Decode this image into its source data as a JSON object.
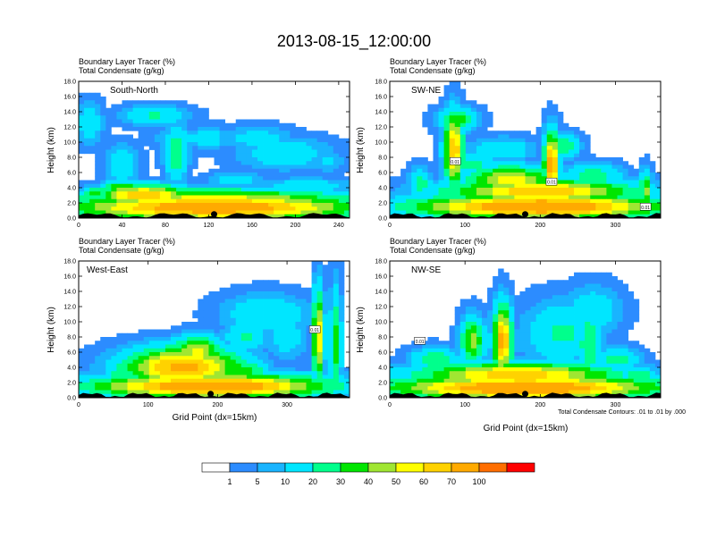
{
  "figure_title": "2013-08-15_12:00:00",
  "chart_data": [
    {
      "type": "heatmap",
      "panel": "South-North",
      "title_line1": "Boundary Layer Tracer   (%)",
      "title_line2": "Total Condensate   (g/kg)",
      "ylabel": "Height (km)",
      "xlabel": "",
      "xlim": [
        0,
        250
      ],
      "ylim": [
        0,
        18
      ],
      "x_ticks": [
        "0",
        "40",
        "80",
        "120",
        "160",
        "200",
        "240"
      ],
      "y_ticks": [
        "0.0",
        "2.0",
        "4.0",
        "6.0",
        "8.0",
        "10.0",
        "12.0",
        "14.0",
        "16.0",
        "18.0"
      ],
      "marker_x": 125,
      "blobs": [
        {
          "x": 125,
          "y": 1.4,
          "rx": 130,
          "ry": 1.6,
          "v": 85
        },
        {
          "x": 125,
          "y": 2.2,
          "rx": 130,
          "ry": 1.5,
          "v": 60
        },
        {
          "x": 60,
          "y": 3.0,
          "rx": 40,
          "ry": 1.3,
          "v": 72
        },
        {
          "x": 40,
          "y": 3.8,
          "rx": 18,
          "ry": 1.0,
          "v": 45
        },
        {
          "x": 15,
          "y": 3.2,
          "rx": 10,
          "ry": 0.8,
          "v": 40
        },
        {
          "x": 10,
          "y": 12.5,
          "rx": 12,
          "ry": 2.5,
          "v": 18
        },
        {
          "x": 70,
          "y": 13.5,
          "rx": 30,
          "ry": 1.2,
          "v": 22
        },
        {
          "x": 90,
          "y": 8.5,
          "rx": 10,
          "ry": 3.5,
          "v": 30
        },
        {
          "x": 95,
          "y": 10.5,
          "rx": 25,
          "ry": 1.2,
          "v": 15
        },
        {
          "x": 120,
          "y": 10.5,
          "rx": 15,
          "ry": 1.5,
          "v": 20
        },
        {
          "x": 190,
          "y": 8.5,
          "rx": 40,
          "ry": 2.0,
          "v": 18
        },
        {
          "x": 165,
          "y": 10.5,
          "rx": 30,
          "ry": 1.5,
          "v": 15
        },
        {
          "x": 40,
          "y": 7.0,
          "rx": 15,
          "ry": 2.5,
          "v": 18
        },
        {
          "x": 230,
          "y": 7.5,
          "rx": 15,
          "ry": 1.5,
          "v": 12
        },
        {
          "x": 145,
          "y": 5.0,
          "rx": 25,
          "ry": 1.0,
          "v": 15
        },
        {
          "x": 210,
          "y": 4.2,
          "rx": 40,
          "ry": 1.0,
          "v": 18
        }
      ]
    },
    {
      "type": "heatmap",
      "panel": "SW-NE",
      "title_line1": "Boundary Layer Tracer   (%)",
      "title_line2": "Total Condensate   (g/kg)",
      "ylabel": "Height (km)",
      "xlabel": "",
      "xlim": [
        0,
        360
      ],
      "ylim": [
        0,
        18
      ],
      "x_ticks": [
        "0",
        "100",
        "200",
        "300"
      ],
      "y_ticks": [
        "0.0",
        "2.0",
        "4.0",
        "6.0",
        "8.0",
        "10.0",
        "12.0",
        "14.0",
        "16.0",
        "18.0"
      ],
      "marker_x": 180,
      "contour_labels": [
        {
          "x": 87,
          "y": 7.5,
          "text": "0.01"
        },
        {
          "x": 215,
          "y": 4.8,
          "text": "0.01"
        },
        {
          "x": 340,
          "y": 1.5,
          "text": "0.01"
        }
      ],
      "blobs": [
        {
          "x": 200,
          "y": 1.5,
          "rx": 160,
          "ry": 1.5,
          "v": 90
        },
        {
          "x": 200,
          "y": 3.5,
          "rx": 120,
          "ry": 1.5,
          "v": 70
        },
        {
          "x": 160,
          "y": 5.0,
          "rx": 60,
          "ry": 1.8,
          "v": 55
        },
        {
          "x": 85,
          "y": 9.0,
          "rx": 12,
          "ry": 4.5,
          "v": 72
        },
        {
          "x": 90,
          "y": 13.0,
          "rx": 25,
          "ry": 1.5,
          "v": 35
        },
        {
          "x": 215,
          "y": 7.0,
          "rx": 10,
          "ry": 4.0,
          "v": 80
        },
        {
          "x": 230,
          "y": 9.5,
          "rx": 20,
          "ry": 1.5,
          "v": 30
        },
        {
          "x": 150,
          "y": 9.0,
          "rx": 40,
          "ry": 1.5,
          "v": 20
        },
        {
          "x": 110,
          "y": 7.0,
          "rx": 30,
          "ry": 1.5,
          "v": 25
        },
        {
          "x": 270,
          "y": 5.5,
          "rx": 35,
          "ry": 1.5,
          "v": 30
        },
        {
          "x": 340,
          "y": 3.5,
          "rx": 8,
          "ry": 2.5,
          "v": 45
        },
        {
          "x": 40,
          "y": 4.5,
          "rx": 15,
          "ry": 2.0,
          "v": 25
        }
      ]
    },
    {
      "type": "heatmap",
      "panel": "West-East",
      "title_line1": "Boundary Layer Tracer   (%)",
      "title_line2": "Total Condensate   (g/kg)",
      "ylabel": "Height (km)",
      "xlabel": "Grid Point (dx=15km)",
      "xlim": [
        0,
        390
      ],
      "ylim": [
        0,
        18
      ],
      "x_ticks": [
        "0",
        "100",
        "200",
        "300"
      ],
      "y_ticks": [
        "0.0",
        "2.0",
        "4.0",
        "6.0",
        "8.0",
        "10.0",
        "12.0",
        "14.0",
        "16.0",
        "18.0"
      ],
      "marker_x": 190,
      "contour_labels": [
        {
          "x": 340,
          "y": 9.0,
          "text": "0.01"
        }
      ],
      "blobs": [
        {
          "x": 190,
          "y": 1.5,
          "rx": 160,
          "ry": 1.5,
          "v": 88
        },
        {
          "x": 150,
          "y": 4.0,
          "rx": 80,
          "ry": 2.5,
          "v": 75
        },
        {
          "x": 170,
          "y": 6.0,
          "rx": 35,
          "ry": 2.0,
          "v": 55
        },
        {
          "x": 230,
          "y": 3.5,
          "rx": 40,
          "ry": 1.5,
          "v": 40
        },
        {
          "x": 270,
          "y": 11.0,
          "rx": 60,
          "ry": 2.5,
          "v": 20
        },
        {
          "x": 240,
          "y": 8.0,
          "rx": 30,
          "ry": 2.0,
          "v": 22
        },
        {
          "x": 300,
          "y": 8.0,
          "rx": 30,
          "ry": 3.0,
          "v": 15
        },
        {
          "x": 345,
          "y": 8.0,
          "rx": 8,
          "ry": 6.0,
          "v": 60
        },
        {
          "x": 370,
          "y": 7.0,
          "rx": 8,
          "ry": 7.0,
          "v": 35
        },
        {
          "x": 60,
          "y": 3.0,
          "rx": 20,
          "ry": 1.5,
          "v": 30
        }
      ]
    },
    {
      "type": "heatmap",
      "panel": "NW-SE",
      "title_line1": "Boundary Layer Tracer   (%)",
      "title_line2": "Total Condensate   (g/kg)",
      "ylabel": "Height (km)",
      "xlabel": "Grid Point (dx=15km)",
      "xlim": [
        0,
        360
      ],
      "ylim": [
        0,
        18
      ],
      "x_ticks": [
        "0",
        "100",
        "200",
        "300"
      ],
      "y_ticks": [
        "0.0",
        "2.0",
        "4.0",
        "6.0",
        "8.0",
        "10.0",
        "12.0",
        "14.0",
        "16.0",
        "18.0"
      ],
      "marker_x": 180,
      "contour_labels": [
        {
          "x": 40,
          "y": 7.5,
          "text": "0.01"
        }
      ],
      "blobs": [
        {
          "x": 180,
          "y": 1.3,
          "rx": 170,
          "ry": 1.5,
          "v": 90
        },
        {
          "x": 170,
          "y": 3.0,
          "rx": 130,
          "ry": 1.5,
          "v": 68
        },
        {
          "x": 150,
          "y": 7.5,
          "rx": 12,
          "ry": 4.5,
          "v": 75
        },
        {
          "x": 110,
          "y": 7.5,
          "rx": 15,
          "ry": 3.0,
          "v": 45
        },
        {
          "x": 60,
          "y": 5.0,
          "rx": 30,
          "ry": 1.5,
          "v": 30
        },
        {
          "x": 230,
          "y": 8.5,
          "rx": 50,
          "ry": 4.0,
          "v": 22
        },
        {
          "x": 270,
          "y": 11.5,
          "rx": 35,
          "ry": 3.0,
          "v": 18
        },
        {
          "x": 265,
          "y": 7.0,
          "rx": 15,
          "ry": 5.0,
          "v": 30
        },
        {
          "x": 300,
          "y": 5.0,
          "rx": 30,
          "ry": 1.5,
          "v": 25
        },
        {
          "x": 330,
          "y": 3.0,
          "rx": 25,
          "ry": 1.0,
          "v": 30
        }
      ]
    }
  ],
  "panel_labels": [
    "South-North",
    "SW-NE",
    "West-East",
    "NW-SE"
  ],
  "contour_note": "Total Condensate Contours: .01 to .01 by .000",
  "colorbar": {
    "labels": [
      "1",
      "5",
      "10",
      "20",
      "30",
      "40",
      "50",
      "60",
      "70",
      "100"
    ],
    "colors": [
      "#ffffff",
      "#2c8cff",
      "#19b4ff",
      "#00e6ff",
      "#00ff8c",
      "#00e600",
      "#a0e632",
      "#ffff00",
      "#ffd200",
      "#ffaa00",
      "#ff6e00",
      "#ff0000"
    ]
  }
}
